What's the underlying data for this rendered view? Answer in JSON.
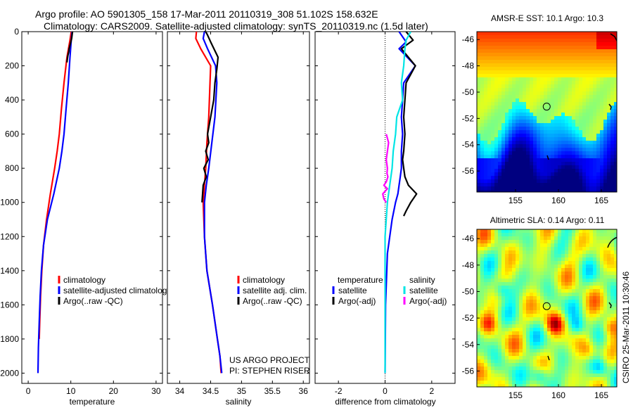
{
  "header": {
    "title_line1": "Argo profile: AO 5901305_158 17-Mar-2011 20110319_308 51.102S 158.632E",
    "title_line2": "Climatology: CARS2009. Satellite-adjusted climatology: synTS_20110319.nc (1.5d later)"
  },
  "footer": {
    "project_line1": "US ARGO PROJECT",
    "project_line2": "PI: STEPHEN RISER",
    "credit": "CSIRO 25-Mar-2011 10:30:46"
  },
  "colors": {
    "climatology": "#ff0000",
    "satellite": "#0000ff",
    "argo": "#000000",
    "salinity_satellite": "#00e5e5",
    "salinity_argo": "#ff00ff"
  },
  "chart_data": [
    {
      "type": "line",
      "id": "temperature",
      "xlabel": "temperature",
      "xlim": [
        -1.5,
        31.5
      ],
      "ylim": [
        2060,
        0
      ],
      "xticks": [
        0,
        10,
        20,
        30
      ],
      "yticks": [
        0,
        200,
        400,
        600,
        800,
        1000,
        1200,
        1400,
        1600,
        1800,
        2000
      ],
      "legend": [
        "climatology",
        "satellite-adjusted climatolog",
        "Argo(..raw -QC)"
      ],
      "series": [
        {
          "name": "climatology",
          "color": "#ff0000",
          "x": [
            10.1,
            9.8,
            9.1,
            8.4,
            7.8,
            7.3,
            6.8,
            6.2,
            5.2,
            4.3,
            3.6,
            3.2,
            2.9,
            2.7,
            2.6
          ],
          "y": [
            0,
            50,
            150,
            300,
            450,
            600,
            700,
            800,
            950,
            1100,
            1250,
            1400,
            1550,
            1700,
            1800
          ]
        },
        {
          "name": "satellite-adjusted climatology",
          "color": "#0000ff",
          "x": [
            10.3,
            10.1,
            9.8,
            9.4,
            8.9,
            8.4,
            7.9,
            7.3,
            6.0,
            4.5,
            3.6,
            3.1,
            2.8,
            2.6,
            2.4,
            2.3
          ],
          "y": [
            0,
            50,
            150,
            300,
            450,
            600,
            700,
            800,
            950,
            1100,
            1250,
            1400,
            1550,
            1700,
            1850,
            2000
          ]
        },
        {
          "name": "Argo(..raw -QC)",
          "color": "#000000",
          "x": [
            10.4,
            10.3,
            10.2,
            10.0,
            9.8,
            9.6,
            9.5,
            9.3,
            9.2,
            9.1
          ],
          "y": [
            0,
            20,
            40,
            60,
            80,
            100,
            120,
            140,
            160,
            180
          ]
        }
      ]
    },
    {
      "type": "line",
      "id": "salinity",
      "xlabel": "salinity",
      "xlim": [
        33.8,
        36.1
      ],
      "ylim": [
        2060,
        0
      ],
      "xticks": [
        34,
        34.5,
        35,
        35.5,
        36
      ],
      "legend": [
        "climatology",
        "satellite adj. clim.",
        "Argo(..raw -QC)"
      ],
      "series": [
        {
          "name": "climatology",
          "color": "#ff0000",
          "x": [
            34.27,
            34.26,
            34.34,
            34.5,
            34.49,
            34.47,
            34.44,
            34.42,
            34.4,
            34.38,
            34.4,
            34.44,
            34.53,
            34.61,
            34.65,
            34.67
          ],
          "y": [
            0,
            40,
            100,
            200,
            300,
            500,
            650,
            800,
            900,
            1000,
            1200,
            1400,
            1600,
            1800,
            1900,
            2000
          ]
        },
        {
          "name": "satellite adj. clim.",
          "color": "#0000ff",
          "x": [
            34.4,
            34.38,
            34.45,
            34.58,
            34.6,
            34.57,
            34.52,
            34.47,
            34.43,
            34.4,
            34.4,
            34.44,
            34.53,
            34.61,
            34.65,
            34.68
          ],
          "y": [
            0,
            40,
            100,
            200,
            300,
            500,
            650,
            800,
            900,
            1000,
            1200,
            1400,
            1600,
            1800,
            1900,
            2000
          ]
        },
        {
          "name": "Argo(..raw -QC)",
          "color": "#000000",
          "x": [
            34.42,
            34.45,
            34.5,
            34.58,
            34.62,
            34.6,
            34.57,
            34.55,
            34.5,
            34.45,
            34.47,
            34.42,
            34.46,
            34.39,
            34.43,
            34.38,
            34.36
          ],
          "y": [
            0,
            20,
            60,
            120,
            150,
            220,
            300,
            400,
            500,
            600,
            650,
            700,
            750,
            800,
            850,
            900,
            1000
          ]
        }
      ]
    },
    {
      "type": "line",
      "id": "difference",
      "xlabel": "difference from climatology",
      "xlim": [
        -3,
        3
      ],
      "ylim": [
        2060,
        0
      ],
      "xticks": [
        -2,
        0,
        2
      ],
      "legend_groups": [
        {
          "title": "temperature",
          "items": [
            "satellite",
            "Argo(-adj)"
          ]
        },
        {
          "title": "salinity",
          "items": [
            "satellite",
            "Argo(-adj)"
          ]
        }
      ],
      "series": [
        {
          "name": "temperature satellite",
          "color": "#0000ff",
          "x": [
            0.6,
            0.9,
            0.6,
            1.3,
            0.8,
            0.75,
            0.7,
            0.75,
            0.7,
            0.7,
            0.65,
            0.6,
            0.55,
            0.45,
            0.3,
            0.1,
            0.02,
            0.0
          ],
          "y": [
            0,
            60,
            100,
            200,
            300,
            400,
            500,
            600,
            700,
            800,
            850,
            900,
            950,
            1000,
            1100,
            1300,
            1600,
            2000
          ]
        },
        {
          "name": "temperature Argo(-adj)",
          "color": "#000000",
          "x": [
            0.9,
            1.2,
            0.7,
            1.3,
            0.9,
            0.85,
            0.8,
            0.85,
            0.8,
            0.75,
            0.8,
            0.85,
            1.0,
            1.35,
            1.1,
            0.9,
            0.8
          ],
          "y": [
            0,
            50,
            100,
            200,
            300,
            400,
            500,
            600,
            700,
            750,
            800,
            850,
            900,
            950,
            1000,
            1050,
            1080
          ]
        },
        {
          "name": "salinity satellite",
          "color": "#00e5e5",
          "x": [
            1.1,
            0.9,
            0.85,
            0.8,
            0.7,
            0.75,
            0.5,
            0.45,
            0.35,
            0.3,
            0.2,
            0.1,
            0.0,
            0.0
          ],
          "y": [
            0,
            50,
            100,
            200,
            300,
            400,
            500,
            600,
            700,
            800,
            900,
            1000,
            1200,
            2000
          ]
        },
        {
          "name": "salinity Argo(-adj)",
          "color": "#ff00ff",
          "x": [
            0.05,
            0.15,
            0.1,
            0.05,
            0.1,
            0.08,
            0.12,
            0.05,
            -0.05,
            0.1,
            -0.1,
            -0.05,
            0.05
          ],
          "y": [
            600,
            650,
            700,
            750,
            800,
            830,
            850,
            880,
            900,
            920,
            950,
            980,
            1000
          ]
        }
      ]
    },
    {
      "type": "heatmap",
      "id": "sst-map",
      "title": "AMSR-E SST: 10.1 Argo: 10.3",
      "xlim": [
        150.5,
        166.8
      ],
      "ylim": [
        -57.6,
        -45.4
      ],
      "xticks": [
        155,
        160,
        165
      ],
      "yticks": [
        -46,
        -48,
        -50,
        -52,
        -54,
        -56
      ],
      "argo_position": {
        "lon": 158.632,
        "lat": -51.102
      }
    },
    {
      "type": "heatmap",
      "id": "sla-map",
      "title": "Altimetric SLA: 0.14 Argo: 0.11",
      "xlim": [
        150.5,
        166.8
      ],
      "ylim": [
        -57.2,
        -45.3
      ],
      "xticks": [
        155,
        160,
        165
      ],
      "yticks": [
        -46,
        -48,
        -50,
        -52,
        -54,
        -56
      ],
      "argo_position": {
        "lon": 158.632,
        "lat": -51.102
      }
    }
  ]
}
